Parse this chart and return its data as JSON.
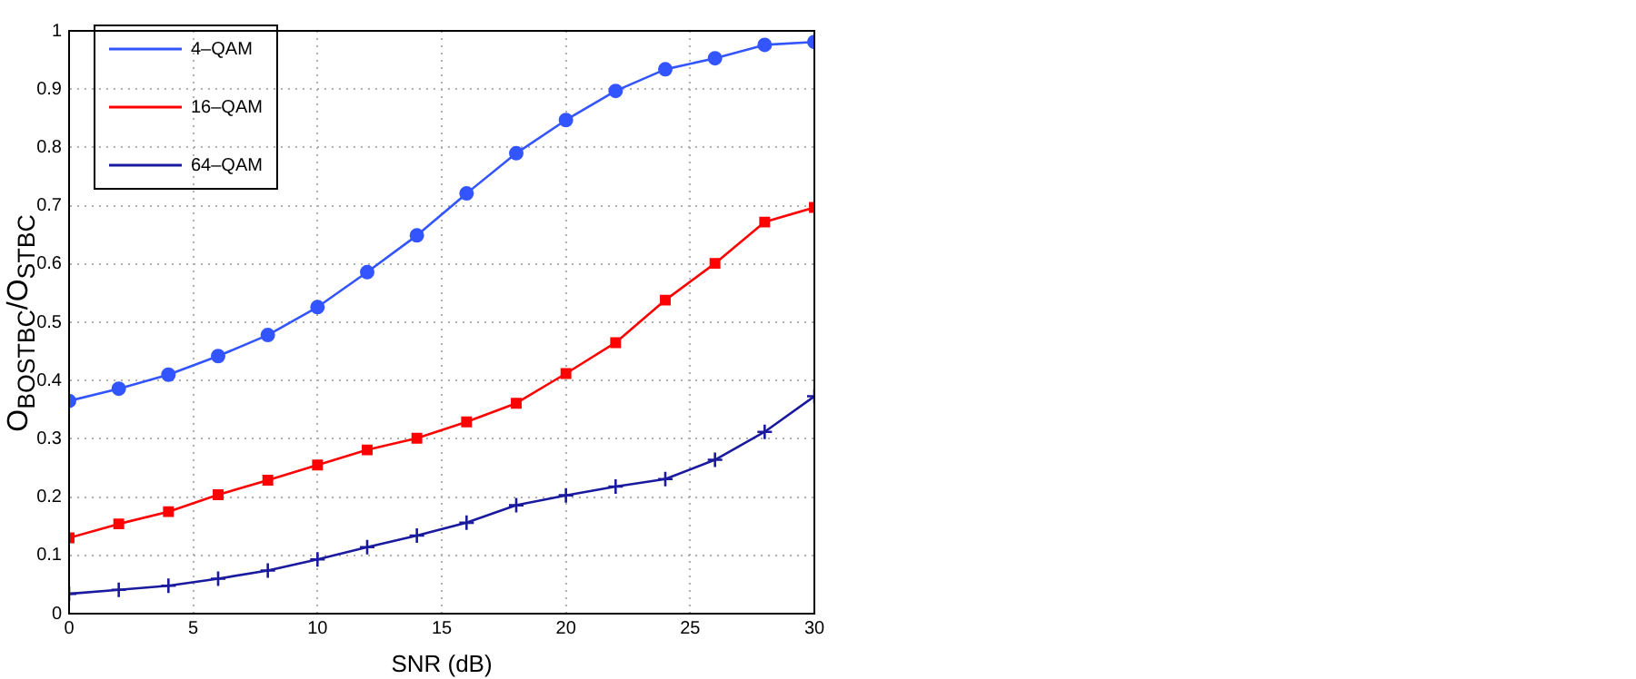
{
  "chart_data": {
    "type": "line",
    "xlabel": "SNR (dB)",
    "ylabel": "O$_{BOSTBC}$/O$_{STBC}$",
    "x": [
      0,
      2,
      4,
      6,
      8,
      10,
      12,
      14,
      16,
      18,
      20,
      22,
      24,
      26,
      28,
      30
    ],
    "series": [
      {
        "name": "4–QAM",
        "color": "#3355ff",
        "marker": "circle",
        "values": [
          0.365,
          0.386,
          0.41,
          0.442,
          0.478,
          0.526,
          0.586,
          0.649,
          0.721,
          0.79,
          0.847,
          0.897,
          0.934,
          0.953,
          0.976,
          0.981
        ]
      },
      {
        "name": "16–QAM",
        "color": "#ff0000",
        "marker": "square",
        "values": [
          0.13,
          0.154,
          0.175,
          0.204,
          0.229,
          0.255,
          0.281,
          0.301,
          0.329,
          0.361,
          0.412,
          0.465,
          0.538,
          0.601,
          0.672,
          0.697
        ]
      },
      {
        "name": "64–QAM",
        "color": "#1a1a9e",
        "marker": "cross",
        "values": [
          0.034,
          0.041,
          0.048,
          0.06,
          0.074,
          0.093,
          0.114,
          0.134,
          0.156,
          0.186,
          0.203,
          0.218,
          0.231,
          0.264,
          0.312,
          0.373
        ]
      }
    ],
    "xlim": [
      0,
      30
    ],
    "xticks": [
      0,
      5,
      10,
      15,
      20,
      25,
      30
    ],
    "ylim": [
      0,
      1
    ],
    "yticks": [
      0,
      0.1,
      0.2,
      0.3,
      0.4,
      0.5,
      0.6,
      0.7,
      0.8,
      0.9,
      1
    ],
    "grid": true,
    "legend": "top left",
    "line_style": "solid"
  }
}
